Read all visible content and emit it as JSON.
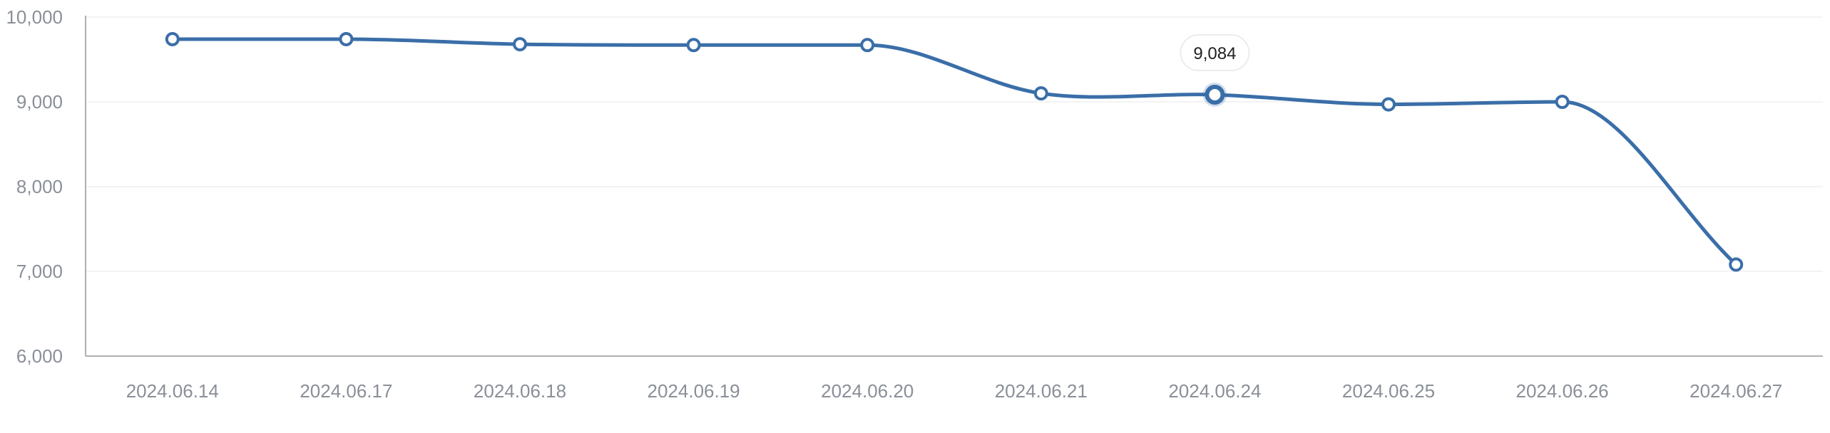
{
  "chart_data": {
    "type": "line",
    "categories": [
      "2024.06.14",
      "2024.06.17",
      "2024.06.18",
      "2024.06.19",
      "2024.06.20",
      "2024.06.21",
      "2024.06.24",
      "2024.06.25",
      "2024.06.26",
      "2024.06.27"
    ],
    "values": [
      9740,
      9740,
      9680,
      9670,
      9670,
      9100,
      9084,
      8970,
      9000,
      7080
    ],
    "y_ticks": [
      "6,000",
      "7,000",
      "8,000",
      "9,000",
      "10,000"
    ],
    "ylim": [
      6000,
      10000
    ],
    "grid": true,
    "highlight": {
      "index": 6,
      "label": "9,084"
    },
    "colors": {
      "line": "#3a6ea8",
      "point_fill": "#ffffff",
      "grid": "#efefef",
      "axis": "#b0b0b0",
      "tick_text": "#8a8f98"
    }
  }
}
